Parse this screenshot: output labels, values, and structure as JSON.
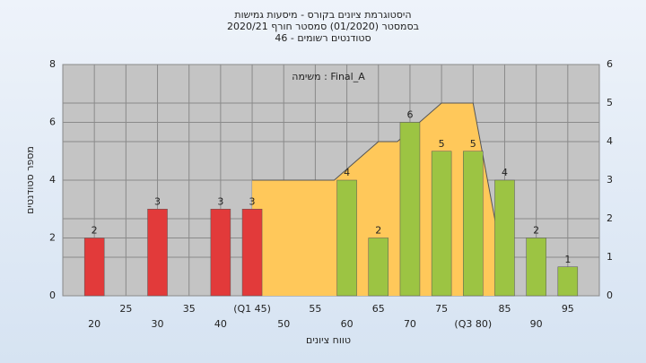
{
  "chart_data": {
    "type": "bar",
    "title": [
      "היסטוגרמת ציונים בקורס - מיסעות גמישות",
      "בסמסטר (01/2020) סמסטר חורף 2020/21",
      "46 - סטודנטים רשומים"
    ],
    "annotation": "משימה : Final_A",
    "x_label": "טווח ציונים",
    "y_label": "מספר סטודנטים",
    "x": [
      20,
      30,
      40,
      45,
      60,
      65,
      70,
      75,
      80,
      85,
      90,
      95
    ],
    "values": [
      2,
      3,
      3,
      3,
      4,
      2,
      6,
      5,
      5,
      4,
      2,
      1
    ],
    "colors": [
      "#e23a3a",
      "#e23a3a",
      "#e23a3a",
      "#e23a3a",
      "#9cc443",
      "#9cc443",
      "#9cc443",
      "#9cc443",
      "#9cc443",
      "#9cc443",
      "#9cc443",
      "#9cc443"
    ],
    "area": {
      "axis": "y2",
      "color": "#ffc85a",
      "x": [
        45,
        58,
        65,
        68,
        75,
        80,
        84
      ],
      "values": [
        3,
        3,
        4,
        4,
        5,
        5,
        1.5
      ]
    },
    "xlim": [
      15,
      100
    ],
    "xticks": [
      20,
      25,
      30,
      35,
      40,
      {
        "value": 45,
        "label": "(Q1 45)"
      },
      50,
      55,
      60,
      65,
      70,
      75,
      {
        "value": 80,
        "label": "(Q3 80)"
      },
      85,
      90,
      95
    ],
    "ylim": [
      0,
      8
    ],
    "yticks": [
      0,
      2,
      4,
      6,
      8
    ],
    "y2lim": [
      0,
      6
    ],
    "y2ticks": [
      0,
      1,
      2,
      3,
      4,
      5,
      6
    ],
    "grid": true
  }
}
